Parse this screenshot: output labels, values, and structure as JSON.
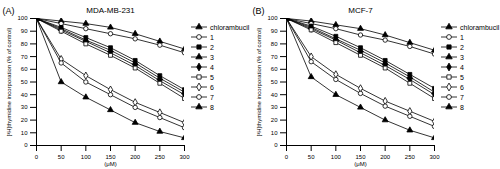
{
  "chart_data": [
    {
      "type": "line",
      "panel": "(A)",
      "title": "MDA-MB-231",
      "x_label": "(μM)",
      "y_label": "[³H]thymidine incorporation (% of control)",
      "x": [
        0,
        50,
        100,
        150,
        200,
        250,
        300
      ],
      "xlim": [
        0,
        300
      ],
      "xticks": [
        0,
        50,
        100,
        150,
        200,
        250,
        300
      ],
      "ylim": [
        0,
        100
      ],
      "yticks": [
        0,
        10,
        20,
        30,
        40,
        50,
        60,
        70,
        80,
        90,
        100
      ],
      "legend": "right",
      "series": [
        {
          "name": "chlorambucil",
          "color": "#000000",
          "marker": "triangle",
          "values": [
            100,
            98,
            96,
            93,
            88,
            82,
            76
          ]
        },
        {
          "name": "1",
          "color": "#000000",
          "marker": "circle-open",
          "values": [
            100,
            96,
            92,
            88,
            84,
            79,
            73
          ]
        },
        {
          "name": "2",
          "color": "#000000",
          "marker": "square",
          "values": [
            100,
            93,
            85,
            77,
            67,
            55,
            44
          ]
        },
        {
          "name": "3",
          "color": "#000000",
          "marker": "triangle",
          "values": [
            100,
            92,
            83,
            75,
            65,
            53,
            42
          ]
        },
        {
          "name": "4",
          "color": "#000000",
          "marker": "diamond",
          "values": [
            100,
            91,
            82,
            73,
            63,
            51,
            40
          ]
        },
        {
          "name": "5",
          "color": "#000000",
          "marker": "square-open",
          "values": [
            100,
            90,
            80,
            71,
            61,
            49,
            37
          ]
        },
        {
          "name": "6",
          "color": "#000000",
          "marker": "diamond-open",
          "values": [
            100,
            68,
            55,
            44,
            34,
            26,
            18
          ]
        },
        {
          "name": "7",
          "color": "#000000",
          "marker": "circle-open",
          "values": [
            100,
            65,
            50,
            40,
            30,
            22,
            14
          ]
        },
        {
          "name": "8",
          "color": "#000000",
          "marker": "triangle",
          "values": [
            100,
            50,
            38,
            28,
            18,
            11,
            6
          ]
        }
      ]
    },
    {
      "type": "line",
      "panel": "(B)",
      "title": "MCF-7",
      "x_label": "(μM)",
      "y_label": "[³H]thymidine incorporation (% of control)",
      "x": [
        0,
        50,
        100,
        150,
        200,
        250,
        300
      ],
      "xlim": [
        0,
        300
      ],
      "xticks": [
        0,
        50,
        100,
        150,
        200,
        250,
        300
      ],
      "ylim": [
        0,
        100
      ],
      "yticks": [
        0,
        10,
        20,
        30,
        40,
        50,
        60,
        70,
        80,
        90,
        100
      ],
      "legend": "right",
      "series": [
        {
          "name": "chlorambucil",
          "color": "#000000",
          "marker": "triangle",
          "values": [
            100,
            98,
            95,
            92,
            87,
            81,
            75
          ]
        },
        {
          "name": "1",
          "color": "#000000",
          "marker": "circle-open",
          "values": [
            100,
            96,
            92,
            87,
            83,
            78,
            72
          ]
        },
        {
          "name": "2",
          "color": "#000000",
          "marker": "square",
          "values": [
            100,
            94,
            86,
            77,
            67,
            56,
            45
          ]
        },
        {
          "name": "3",
          "color": "#000000",
          "marker": "triangle",
          "values": [
            100,
            93,
            84,
            75,
            65,
            54,
            42
          ]
        },
        {
          "name": "4",
          "color": "#000000",
          "marker": "diamond",
          "values": [
            100,
            92,
            83,
            73,
            63,
            52,
            40
          ]
        },
        {
          "name": "5",
          "color": "#000000",
          "marker": "square-open",
          "values": [
            100,
            91,
            81,
            71,
            61,
            49,
            37
          ]
        },
        {
          "name": "6",
          "color": "#000000",
          "marker": "diamond-open",
          "values": [
            100,
            70,
            56,
            45,
            35,
            27,
            19
          ]
        },
        {
          "name": "7",
          "color": "#000000",
          "marker": "circle-open",
          "values": [
            100,
            66,
            52,
            41,
            31,
            23,
            15
          ]
        },
        {
          "name": "8",
          "color": "#000000",
          "marker": "triangle",
          "values": [
            100,
            54,
            40,
            30,
            20,
            12,
            6
          ]
        }
      ]
    }
  ]
}
